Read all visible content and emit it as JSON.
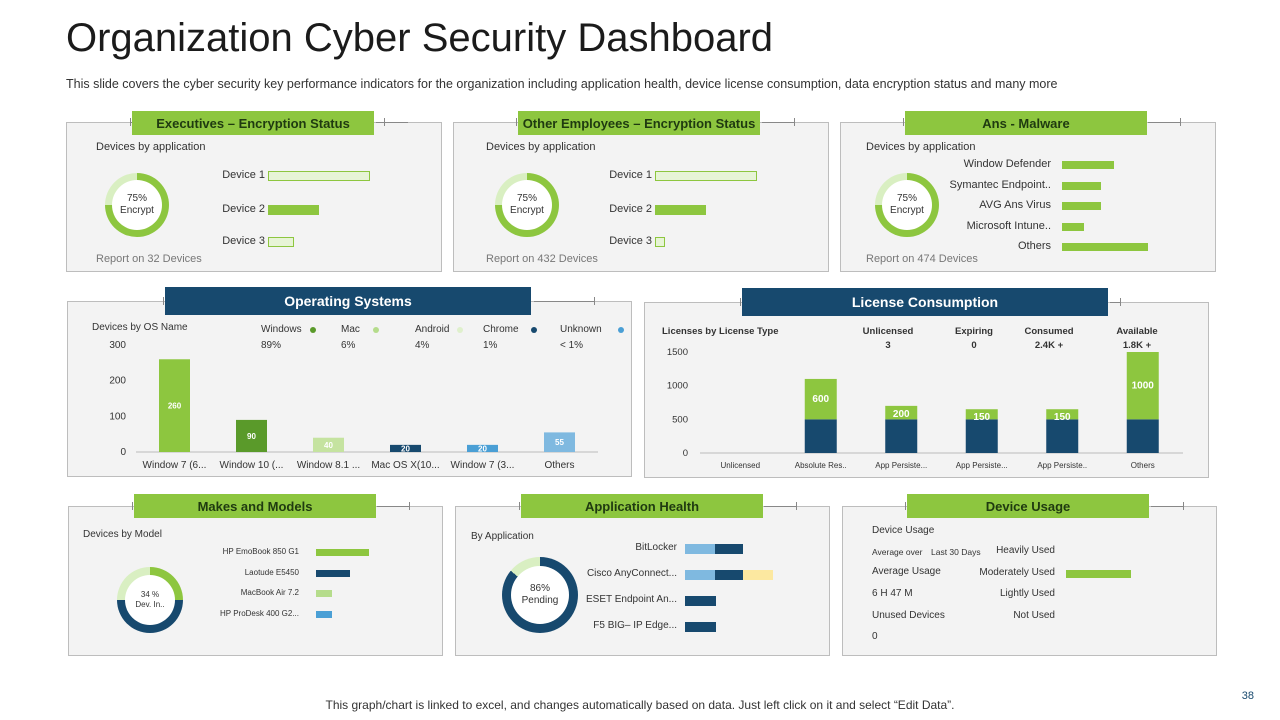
{
  "title": "Organization Cyber Security Dashboard",
  "subtitle": "This slide covers the cyber security key performance  indicators for the organization including application health, device  license consumption, data encryption status and many more",
  "footer": "This graph/chart is linked to excel, and changes automatically based on data. Just left click on it and select “Edit Data”.",
  "page_number": "38",
  "colors": {
    "green": "#8dc63f",
    "navy": "#17496e",
    "light_green": "#c5e3a0",
    "blue": "#4a9fd5",
    "yellow": "#fce8a0",
    "pale_green": "#e7f4d6"
  },
  "exec": {
    "header": "Executives – Encryption Status",
    "label": "Devices by application",
    "donut_line1": "75%",
    "donut_line2": "Encrypt",
    "donut_pct": 75,
    "devices": [
      {
        "name": "Device 1",
        "value": 100,
        "style": "outline"
      },
      {
        "name": "Device 2",
        "value": 50,
        "style": "fill"
      },
      {
        "name": "Device 3",
        "value": 25,
        "style": "outline"
      }
    ],
    "report": "Report on 32 Devices"
  },
  "other": {
    "header": "Other Employees – Encryption Status",
    "label": "Devices by application",
    "donut_line1": "75%",
    "donut_line2": "Encrypt",
    "donut_pct": 75,
    "devices": [
      {
        "name": "Device 1",
        "value": 100,
        "style": "outline"
      },
      {
        "name": "Device 2",
        "value": 50,
        "style": "fill"
      },
      {
        "name": "Device 3",
        "value": 10,
        "style": "outline"
      }
    ],
    "report": "Report on 432 Devices"
  },
  "malware": {
    "header": "Ans - Malware",
    "label": "Devices by application",
    "donut_line1": "75%",
    "donut_line2": "Encrypt",
    "donut_pct": 75,
    "items": [
      {
        "name": "Window Defender",
        "value": 60
      },
      {
        "name": "Symantec Endpoint..",
        "value": 45
      },
      {
        "name": "AVG Ans Virus",
        "value": 45
      },
      {
        "name": "Microsoft Intune..",
        "value": 25
      },
      {
        "name": "Others",
        "value": 100
      }
    ],
    "report": "Report on 474 Devices"
  },
  "os": {
    "header": "Operating Systems",
    "label": "Devices by OS Name",
    "legend": [
      {
        "name": "Windows",
        "pct": "89%",
        "color": "#5a9a2a"
      },
      {
        "name": "Mac",
        "pct": "6%",
        "color": "#b5dc8b"
      },
      {
        "name": "Android",
        "pct": "4%",
        "color": "#dff0cc"
      },
      {
        "name": "Chrome",
        "pct": "1%",
        "color": "#17496e"
      },
      {
        "name": "Unknown",
        "pct": "< 1%",
        "color": "#4a9fd5"
      }
    ]
  },
  "license": {
    "header": "License Consumption",
    "label": "Licenses by License Type",
    "stats": [
      {
        "name": "Unlicensed",
        "value": "3"
      },
      {
        "name": "Expiring",
        "value": "0"
      },
      {
        "name": "Consumed",
        "value": "2.4K +"
      },
      {
        "name": "Available",
        "value": "1.8K +"
      }
    ]
  },
  "makes": {
    "header": "Makes and Models",
    "label": "Devices by Model",
    "donut_line1": "34 %",
    "donut_line2": "Dev. In..",
    "models": [
      {
        "name": "HP EmoBook 850 G1",
        "value": 100,
        "color": "#8dc63f"
      },
      {
        "name": "Laotude E5450",
        "value": 65,
        "color": "#17496e"
      },
      {
        "name": "MacBook Air 7.2",
        "value": 30,
        "color": "#b5dc8b"
      },
      {
        "name": "HP ProDesk 400 G2...",
        "value": 30,
        "color": "#4a9fd5"
      }
    ]
  },
  "apphealth": {
    "header": "Application Health",
    "label": "By Application",
    "donut_line1": "86%",
    "donut_line2": "Pending",
    "donut_pct": 86,
    "apps": [
      {
        "name": "BitLocker",
        "segments": [
          {
            "value": 30,
            "color": "#7fb9e0"
          },
          {
            "value": 28,
            "color": "#17496e"
          }
        ]
      },
      {
        "name": "Cisco AnyConnect...",
        "segments": [
          {
            "value": 30,
            "color": "#7fb9e0"
          },
          {
            "value": 28,
            "color": "#17496e"
          },
          {
            "value": 30,
            "color": "#fce8a0"
          }
        ]
      },
      {
        "name": "ESET  Endpoint An...",
        "segments": [
          {
            "value": 31,
            "color": "#17496e"
          }
        ]
      },
      {
        "name": "F5 BIG– IP Edge...",
        "segments": [
          {
            "value": 31,
            "color": "#17496e"
          }
        ]
      }
    ]
  },
  "usage": {
    "header": "Device Usage",
    "title": "Device Usage",
    "avg_over": "Average  over",
    "last_days": "Last 30 Days",
    "avg_usage_label": "Average  Usage",
    "avg_usage_value": "6 H  47  M",
    "unused_label": "Unused Devices",
    "unused_value": "0",
    "levels": [
      {
        "name": "Heavily Used",
        "value": 0
      },
      {
        "name": "Moderately Used",
        "value": 100
      },
      {
        "name": "Lightly Used",
        "value": 0
      },
      {
        "name": "Not Used",
        "value": 0
      }
    ]
  },
  "chart_data": [
    {
      "type": "bar",
      "title": "Operating Systems",
      "ylabel": "Devices by OS Name",
      "categories": [
        "Window 7 (6...",
        "Window 10 (...",
        "Window 8.1 ...",
        "Mac OS X(10...",
        "Window 7 (3...",
        "Others"
      ],
      "values": [
        260,
        90,
        40,
        20,
        20,
        55
      ],
      "colors": [
        "#8dc63f",
        "#5a9a2a",
        "#c5e3a0",
        "#17496e",
        "#4a9fd5",
        "#7fb9e0"
      ],
      "yticks": [
        0,
        100,
        200,
        300
      ],
      "ylim": [
        0,
        300
      ]
    },
    {
      "type": "bar",
      "stacked": true,
      "title": "License Consumption",
      "ylabel": "Licenses by License Type",
      "categories": [
        "Unlicensed",
        "Absolute Res..",
        "App Persiste...",
        "App Persiste...",
        "App Persiste..",
        "Others"
      ],
      "series": [
        {
          "values": [
            0,
            500,
            500,
            500,
            500,
            500
          ],
          "color": "#17496e"
        },
        {
          "values": [
            0,
            600,
            200,
            150,
            150,
            1000
          ],
          "color": "#8dc63f"
        }
      ],
      "data_labels": [
        "",
        "600",
        "200",
        "150",
        "150",
        "1000"
      ],
      "yticks": [
        0,
        500,
        1000,
        1500
      ],
      "ylim": [
        0,
        1500
      ]
    }
  ]
}
